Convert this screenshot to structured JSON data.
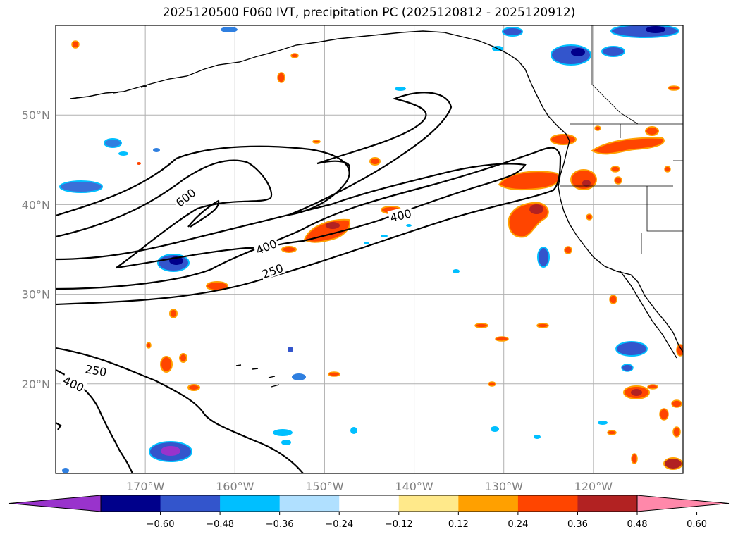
{
  "title": "2025120500 F060 IVT, precipitation PC (2025120812 - 2025120912)",
  "chart_data": {
    "type": "map-contour",
    "title": "2025120500 F060 IVT, precipitation PC (2025120812 - 2025120912)",
    "lon_range": [
      -180,
      -110
    ],
    "lat_range": [
      10,
      60
    ],
    "x_ticks": [
      {
        "value": -170,
        "label": "170°W"
      },
      {
        "value": -160,
        "label": "160°W"
      },
      {
        "value": -150,
        "label": "150°W"
      },
      {
        "value": -140,
        "label": "140°W"
      },
      {
        "value": -130,
        "label": "130°W"
      },
      {
        "value": -120,
        "label": "120°W"
      }
    ],
    "y_ticks": [
      {
        "value": 20,
        "label": "20°N"
      },
      {
        "value": 30,
        "label": "30°N"
      },
      {
        "value": 40,
        "label": "40°N"
      },
      {
        "value": 50,
        "label": "50°N"
      }
    ],
    "grid": true,
    "ivt_contour_levels": [
      250,
      400,
      600
    ],
    "contour_labels": [
      {
        "text": "600",
        "lon": -165.5,
        "lat": 40.8,
        "angle": -38
      },
      {
        "text": "400",
        "lon": -156.5,
        "lat": 35.3,
        "angle": -22
      },
      {
        "text": "250",
        "lon": -155.8,
        "lat": 32.6,
        "angle": -20
      },
      {
        "text": "400",
        "lon": -141.5,
        "lat": 38.8,
        "angle": -14
      },
      {
        "text": "250",
        "lon": -175.5,
        "lat": 21.5,
        "angle": 10
      },
      {
        "text": "400",
        "lon": -178.0,
        "lat": 20.0,
        "angle": 25
      }
    ],
    "colorbar": {
      "ticks": [
        "−0.60",
        "−0.48",
        "−0.36",
        "−0.24",
        "−0.12",
        "0.12",
        "0.24",
        "0.36",
        "0.48",
        "0.60"
      ],
      "colors": [
        "#9933cc",
        "#00008b",
        "#3355cc",
        "#00bfff",
        "#b0e0ff",
        "#ffffff",
        "#ffe98a",
        "#ffa000",
        "#ff4500",
        "#b22222",
        "#ff88aa"
      ],
      "extend": "both"
    }
  }
}
